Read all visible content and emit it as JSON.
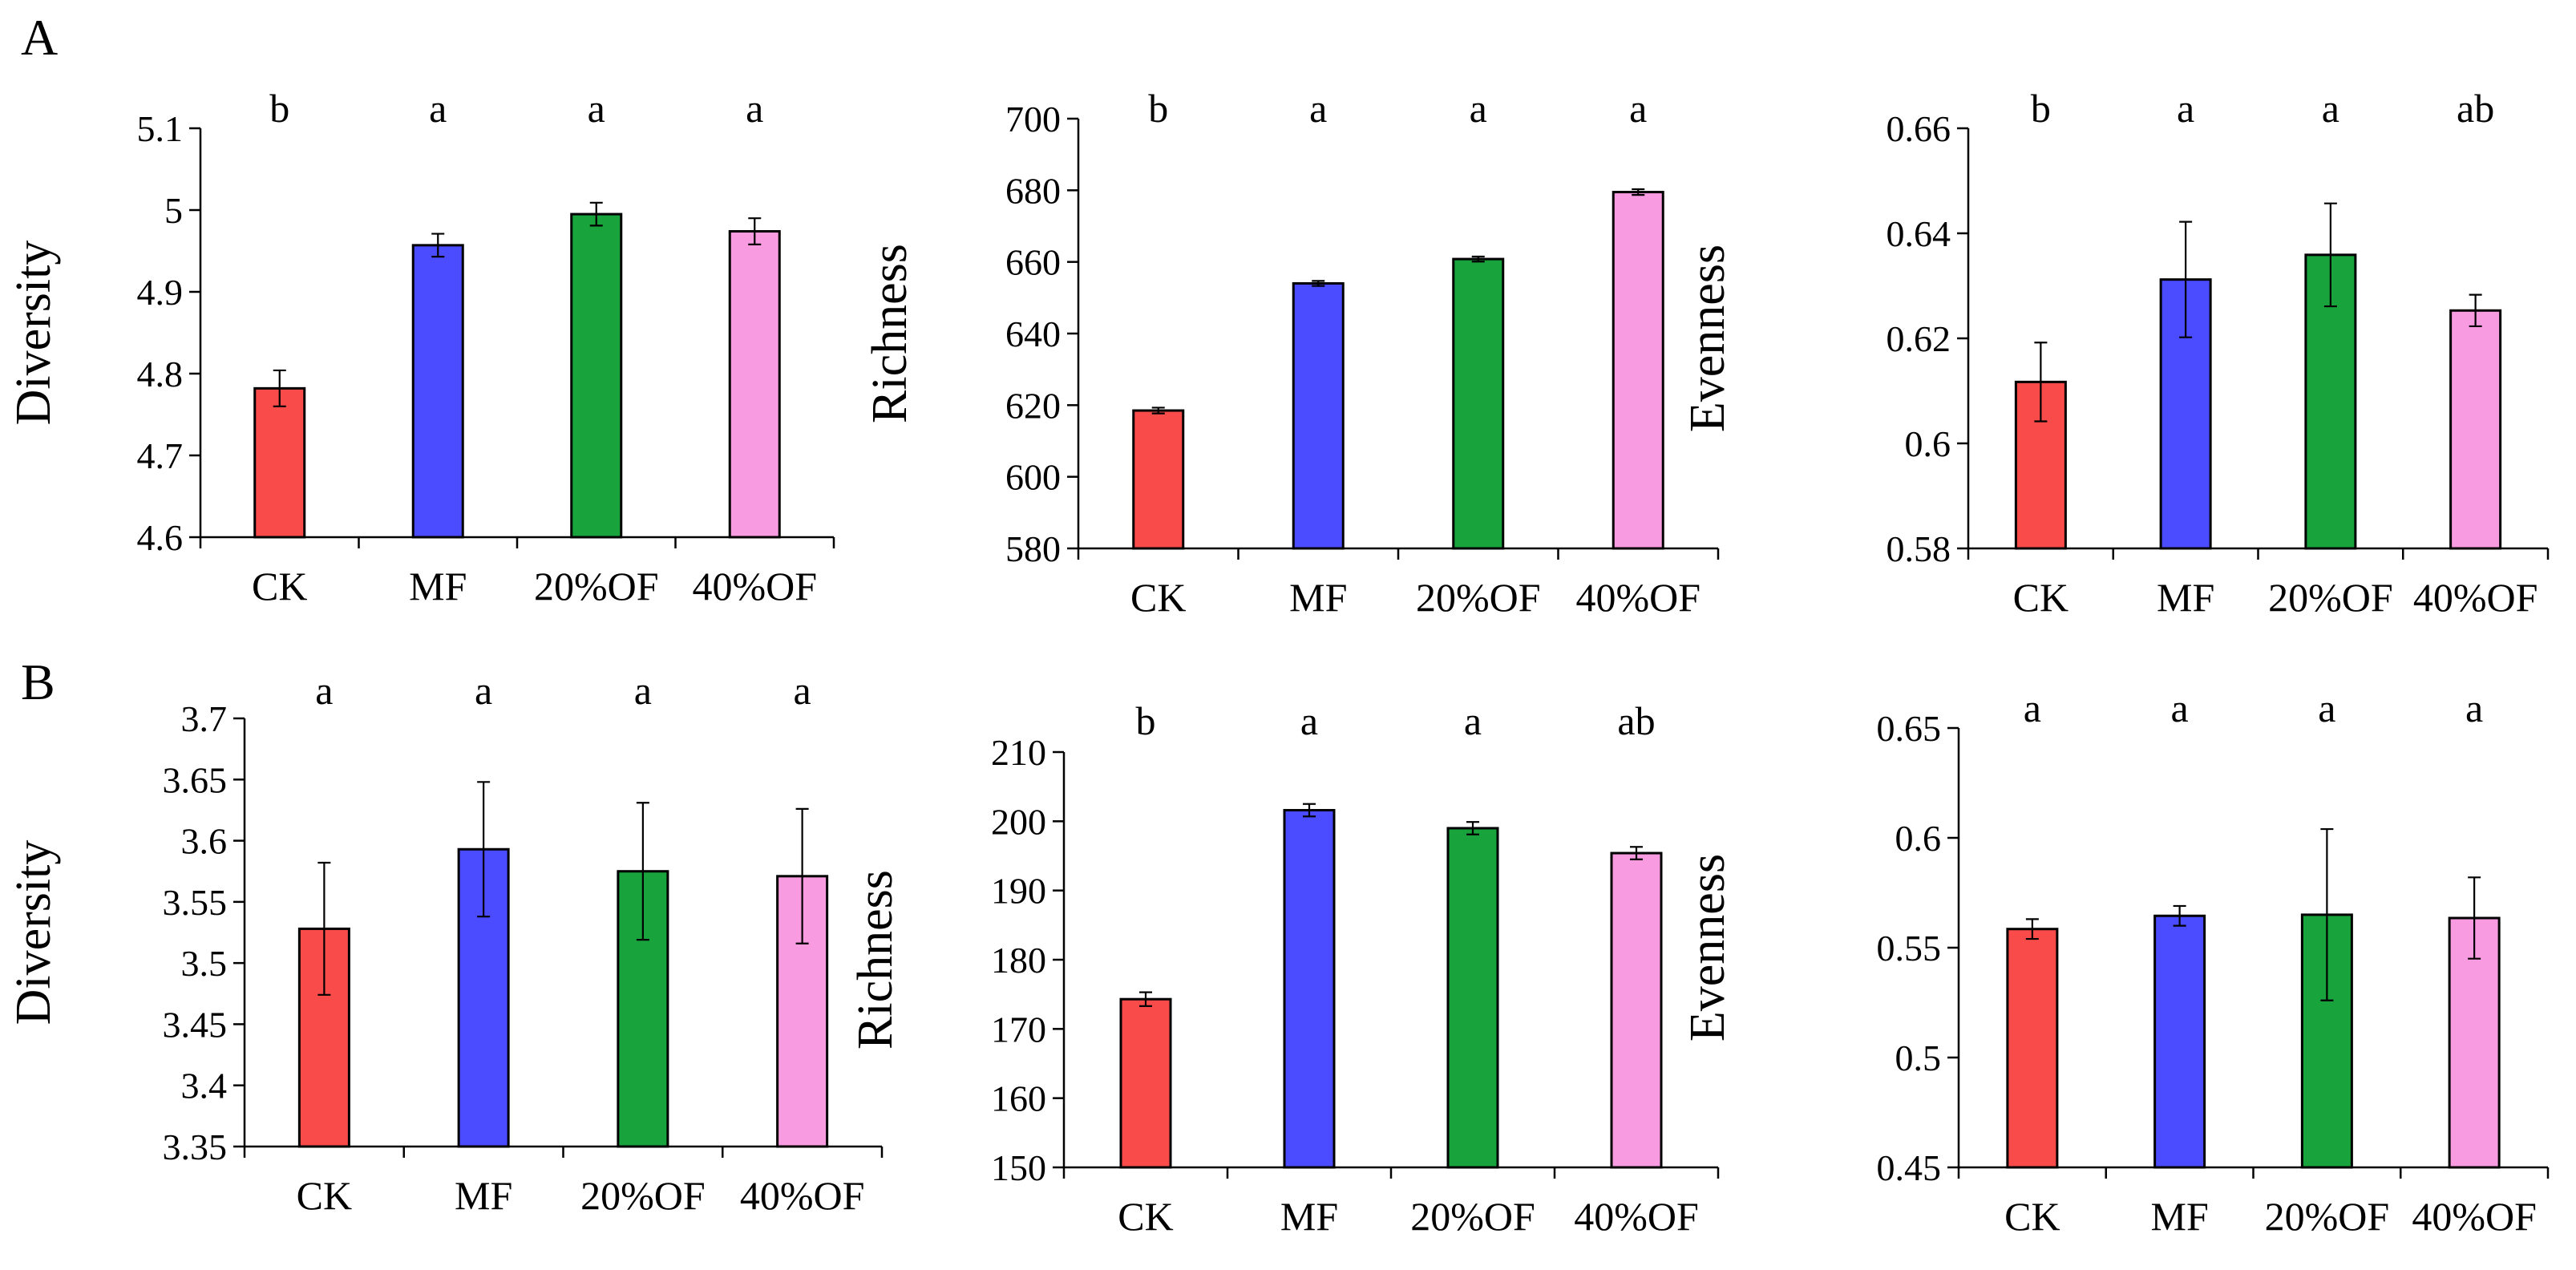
{
  "panel_labels": {
    "A": "A",
    "B": "B"
  },
  "colors": {
    "CK": "#fa4b4b",
    "MF": "#4b4bff",
    "20%OF": "#19a33c",
    "40%OF": "#f99be0"
  },
  "chart_data": [
    {
      "type": "bar",
      "panel": "A",
      "categories": [
        "CK",
        "MF",
        "20%OF",
        "40%OF"
      ],
      "values": [
        4.782,
        4.957,
        4.995,
        4.974
      ],
      "errors": [
        0.022,
        0.014,
        0.014,
        0.016
      ],
      "letters": [
        "b",
        "a",
        "a",
        "a"
      ],
      "ylabel": "Diversity",
      "ylim": [
        4.6,
        5.1
      ],
      "ticks": [
        4.6,
        4.7,
        4.8,
        4.9,
        5.0,
        5.1
      ],
      "tick_labels": [
        "4.6",
        "4.7",
        "4.8",
        "4.9",
        "5",
        "5.1"
      ]
    },
    {
      "type": "bar",
      "panel": "A",
      "categories": [
        "CK",
        "MF",
        "20%OF",
        "40%OF"
      ],
      "values": [
        618.5,
        654,
        660.8,
        679.5
      ],
      "errors": [
        0.8,
        0.7,
        0.7,
        0.8
      ],
      "letters": [
        "b",
        "a",
        "a",
        "a"
      ],
      "ylabel": "Richness",
      "ylim": [
        580,
        700
      ],
      "ticks": [
        580,
        600,
        620,
        640,
        660,
        680,
        700
      ],
      "tick_labels": [
        "580",
        "600",
        "620",
        "640",
        "660",
        "680",
        "700"
      ]
    },
    {
      "type": "bar",
      "panel": "A",
      "categories": [
        "CK",
        "MF",
        "20%OF",
        "40%OF"
      ],
      "values": [
        0.6117,
        0.6312,
        0.6359,
        0.6253
      ],
      "errors": [
        0.0075,
        0.011,
        0.0098,
        0.003
      ],
      "letters": [
        "b",
        "a",
        "a",
        "ab"
      ],
      "ylabel": "Evenness",
      "ylim": [
        0.58,
        0.66
      ],
      "ticks": [
        0.58,
        0.6,
        0.62,
        0.64,
        0.66
      ],
      "tick_labels": [
        "0.58",
        "0.6",
        "0.62",
        "0.64",
        "0.66"
      ]
    },
    {
      "type": "bar",
      "panel": "B",
      "categories": [
        "CK",
        "MF",
        "20%OF",
        "40%OF"
      ],
      "values": [
        3.528,
        3.593,
        3.575,
        3.571
      ],
      "errors": [
        0.054,
        0.055,
        0.056,
        0.055
      ],
      "letters": [
        "a",
        "a",
        "a",
        "a"
      ],
      "ylabel": "Diversity",
      "ylim": [
        3.35,
        3.7
      ],
      "ticks": [
        3.35,
        3.4,
        3.45,
        3.5,
        3.55,
        3.6,
        3.65,
        3.7
      ],
      "tick_labels": [
        "3.35",
        "3.4",
        "3.45",
        "3.5",
        "3.55",
        "3.6",
        "3.65",
        "3.7"
      ]
    },
    {
      "type": "bar",
      "panel": "B",
      "categories": [
        "CK",
        "MF",
        "20%OF",
        "40%OF"
      ],
      "values": [
        174.3,
        201.6,
        199.0,
        195.4
      ],
      "errors": [
        1.0,
        0.9,
        0.9,
        0.9
      ],
      "letters": [
        "b",
        "a",
        "a",
        "ab"
      ],
      "ylabel": "Richness",
      "ylim": [
        150,
        210
      ],
      "ticks": [
        150,
        160,
        170,
        180,
        190,
        200,
        210
      ],
      "tick_labels": [
        "150",
        "160",
        "170",
        "180",
        "190",
        "200",
        "210"
      ]
    },
    {
      "type": "bar",
      "panel": "B",
      "categories": [
        "CK",
        "MF",
        "20%OF",
        "40%OF"
      ],
      "values": [
        0.5585,
        0.5645,
        0.565,
        0.5635
      ],
      "errors": [
        0.0045,
        0.0045,
        0.039,
        0.0185
      ],
      "letters": [
        "a",
        "a",
        "a",
        "a"
      ],
      "ylabel": "Evenness",
      "ylim": [
        0.45,
        0.65
      ],
      "ticks": [
        0.45,
        0.5,
        0.55,
        0.6,
        0.65
      ],
      "tick_labels": [
        "0.45",
        "0.5",
        "0.55",
        "0.6",
        "0.65"
      ]
    }
  ]
}
